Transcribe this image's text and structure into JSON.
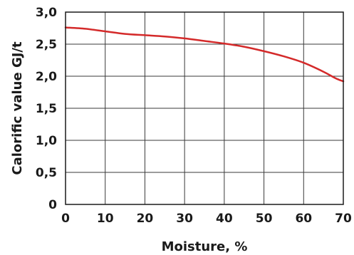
{
  "chart_data": {
    "type": "line",
    "title": "",
    "xlabel": "Moisture, %",
    "ylabel": "Calorific value GJ/t",
    "xlim": [
      0,
      70
    ],
    "ylim": [
      0,
      3.0
    ],
    "grid": true,
    "x_ticks": [
      0,
      10,
      20,
      30,
      40,
      50,
      60,
      70
    ],
    "x_tick_labels": [
      "0",
      "10",
      "20",
      "30",
      "40",
      "50",
      "60",
      "70"
    ],
    "y_ticks": [
      0,
      0.5,
      1.0,
      1.5,
      2.0,
      2.5,
      3.0
    ],
    "y_tick_labels": [
      "0",
      "0,5",
      "1,0",
      "1,5",
      "2,0",
      "2,5",
      "3,0"
    ],
    "series": [
      {
        "color": "#d42a2a",
        "x": [
          0,
          5,
          10,
          15,
          20,
          25,
          30,
          35,
          40,
          45,
          50,
          55,
          60,
          65,
          68,
          70
        ],
        "y": [
          2.76,
          2.74,
          2.7,
          2.66,
          2.64,
          2.62,
          2.59,
          2.55,
          2.51,
          2.46,
          2.39,
          2.31,
          2.21,
          2.07,
          1.97,
          1.92
        ]
      }
    ]
  }
}
